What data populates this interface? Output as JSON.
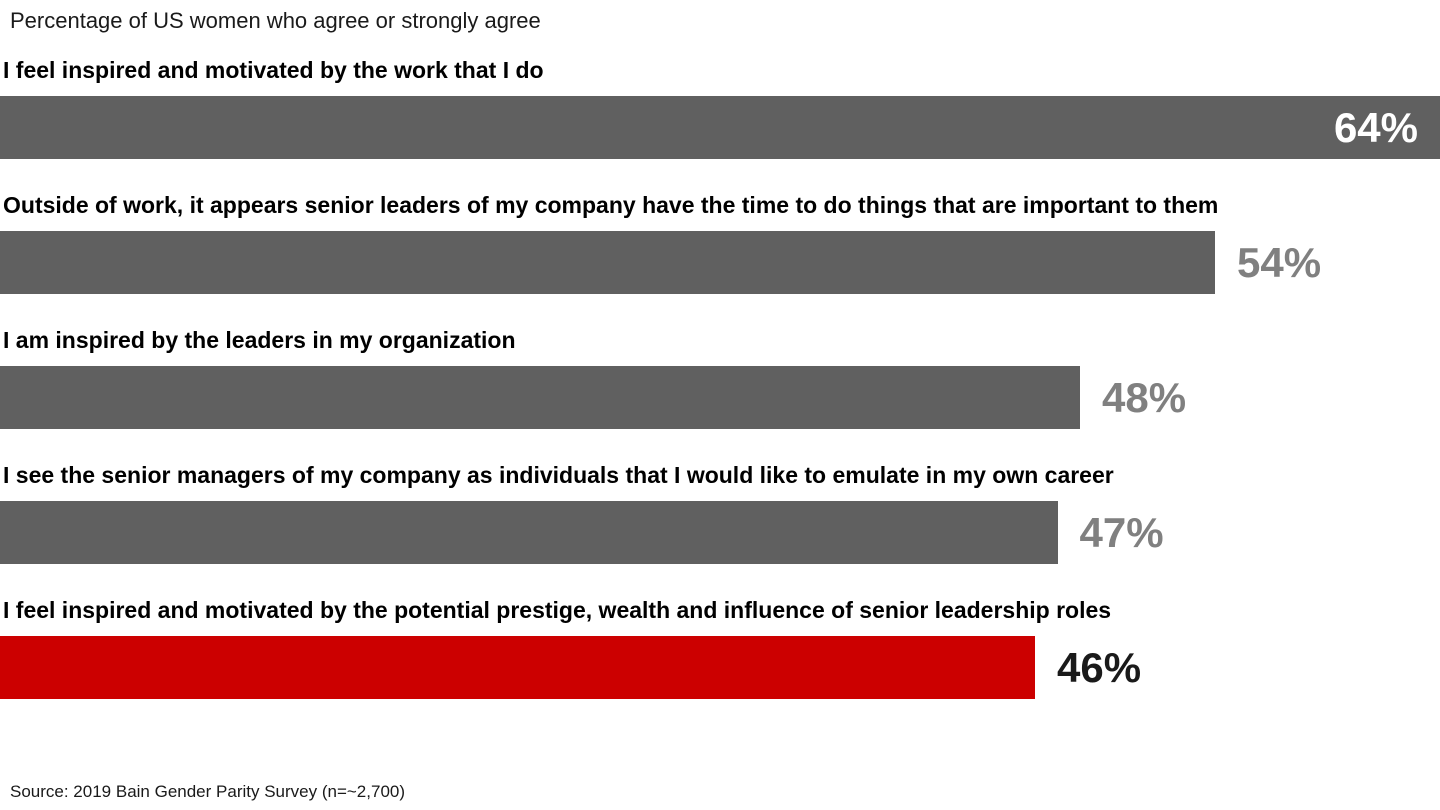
{
  "chart_data": {
    "type": "bar",
    "orientation": "horizontal",
    "title": "Percentage of US women who agree or strongly agree",
    "xlim": [
      0,
      64
    ],
    "grid": false,
    "legend": false,
    "bars": [
      {
        "label": "I feel inspired and motivated by the work that I do",
        "value": 64,
        "display": "64%",
        "color": "#606060",
        "value_color": "#ffffff",
        "value_position": "inside"
      },
      {
        "label": "Outside of work, it appears senior leaders of my company have the time to do things that are important to them",
        "value": 54,
        "display": "54%",
        "color": "#606060",
        "value_color": "#808080",
        "value_position": "outside"
      },
      {
        "label": "I am inspired by the leaders in my organization",
        "value": 48,
        "display": "48%",
        "color": "#606060",
        "value_color": "#808080",
        "value_position": "outside"
      },
      {
        "label": "I see the senior managers of my company as individuals that I would like to emulate in my own career",
        "value": 47,
        "display": "47%",
        "color": "#606060",
        "value_color": "#808080",
        "value_position": "outside"
      },
      {
        "label": "I feel inspired and motivated by the potential prestige, wealth and influence of senior leadership roles",
        "value": 46,
        "display": "46%",
        "color": "#cc0000",
        "value_color": "#1a1a1a",
        "value_position": "outside"
      }
    ],
    "source": "Source: 2019 Bain Gender Parity Survey (n=~2,700)"
  }
}
